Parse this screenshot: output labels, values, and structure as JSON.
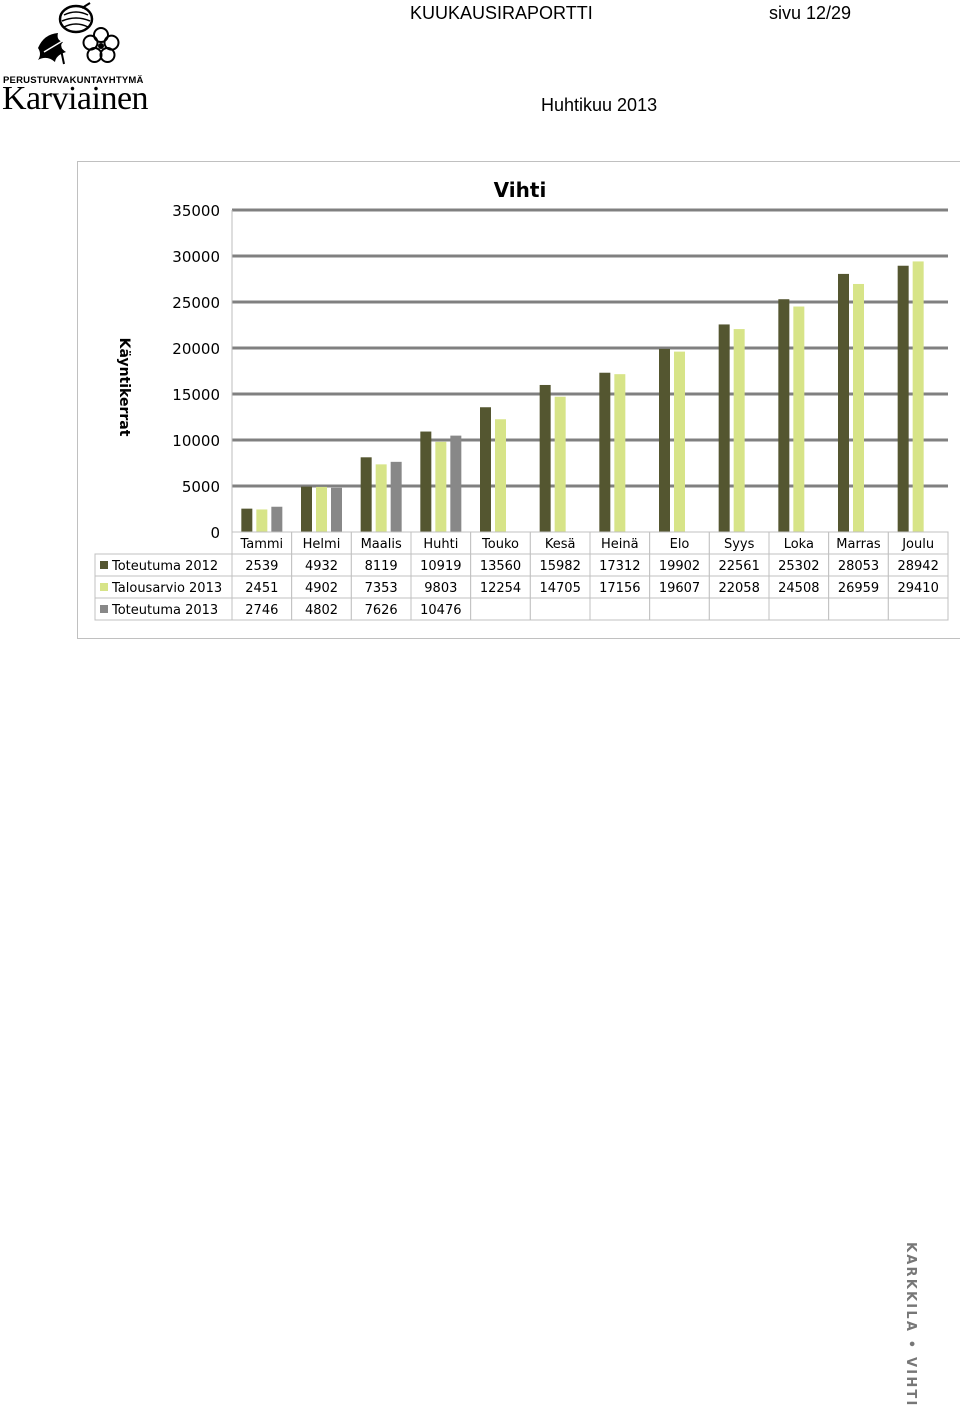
{
  "header": {
    "org_name": "PERUSTURVAKUNTAYHTYMÄ",
    "brand_name": "Karviainen",
    "report_title": "KUUKAUSIRAPORTTI",
    "page_number": "sivu 12/29",
    "period": "Huhtikuu 2013"
  },
  "footer": {
    "side_text": "KARKKILA • VIHTI"
  },
  "colors": {
    "series_2012": "#545630",
    "series_budget_2013": "#D7E488",
    "series_2013": "#888888",
    "gridline": "#808080",
    "frame_border": "#c0c0c0"
  },
  "chart_data": {
    "type": "bar",
    "title": "Vihti",
    "ylabel": "Käyntikerrat",
    "ylim": [
      0,
      35000
    ],
    "yticks": [
      0,
      5000,
      10000,
      15000,
      20000,
      25000,
      30000,
      35000
    ],
    "ytick_labels": [
      "0",
      "5000",
      "10000",
      "15000",
      "20000",
      "25000",
      "30000",
      "35000"
    ],
    "grid": true,
    "legend": "data-table-left",
    "categories": [
      "Tammi",
      "Helmi",
      "Maalis",
      "Huhti",
      "Touko",
      "Kesä",
      "Heinä",
      "Elo",
      "Syys",
      "Loka",
      "Marras",
      "Joulu"
    ],
    "series": [
      {
        "name": "Toteutuma 2012",
        "color": "#545630",
        "values": [
          2539,
          4932,
          8119,
          10919,
          13560,
          15982,
          17312,
          19902,
          22561,
          25302,
          28053,
          28942
        ],
        "labels": [
          "2539",
          "4932",
          "8119",
          "10919",
          "13560",
          "15982",
          "17312",
          "19902",
          "22561",
          "25302",
          "28053",
          "28942"
        ]
      },
      {
        "name": "Talousarvio 2013",
        "color": "#D7E488",
        "values": [
          2451,
          4902,
          7353,
          9803,
          12254,
          14705,
          17156,
          19607,
          22058,
          24508,
          26959,
          29410
        ],
        "labels": [
          "2451",
          "4902",
          "7353",
          "9803",
          "12254",
          "14705",
          "17156",
          "19607",
          "22058",
          "24508",
          "26959",
          "29410"
        ]
      },
      {
        "name": "Toteutuma 2013",
        "color": "#888888",
        "values": [
          2746,
          4802,
          7626,
          10476,
          null,
          null,
          null,
          null,
          null,
          null,
          null,
          null
        ],
        "labels": [
          "2746",
          "4802",
          "7626",
          "10476",
          "",
          "",
          "",
          "",
          "",
          "",
          "",
          ""
        ]
      }
    ]
  }
}
